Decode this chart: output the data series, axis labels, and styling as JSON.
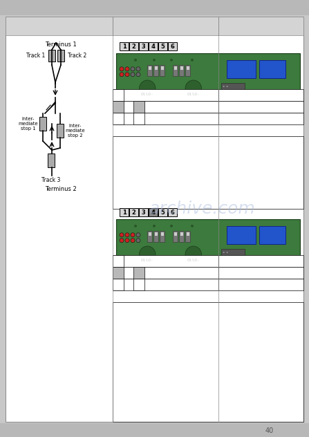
{
  "page_bg": "#c8c8c8",
  "top_bar_color": "#b4b4b4",
  "bottom_bar_color": "#b4b4b4",
  "content_bg": "#ffffff",
  "header_bg": "#d4d4d4",
  "border_color": "#888888",
  "gray_cell": "#b8b8b8",
  "board_green": "#3a7a3a",
  "board_dark_green": "#2a5a2a",
  "board_blue": "#2255cc",
  "board_red": "#cc2222",
  "board_gray_led": "#888888",
  "number_box_bg": "#d8d8d8",
  "watermark_color": "#aabbdd",
  "track_color": "#000000",
  "sensor_color": "#999999",
  "num_labels": [
    "1",
    "2",
    "3",
    "4",
    "5",
    "6"
  ],
  "page_number": "40"
}
